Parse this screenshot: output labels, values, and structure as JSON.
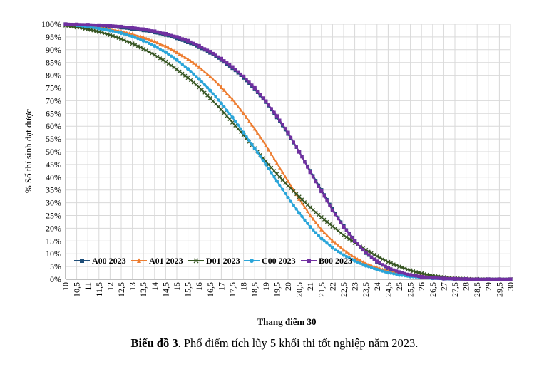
{
  "chart_data": {
    "type": "line",
    "xlabel": "Thang điểm 30",
    "ylabel": "% Số thí sinh đạt được",
    "xlim": [
      10,
      30
    ],
    "ylim": [
      0,
      100
    ],
    "x_ticks": [
      "10",
      "10,5",
      "11",
      "11,5",
      "12",
      "12,5",
      "13",
      "13,5",
      "14",
      "14,5",
      "15",
      "15,5",
      "16",
      "16,5",
      "17",
      "17,5",
      "18",
      "18,5",
      "19",
      "19,5",
      "20",
      "20,5",
      "21",
      "21,5",
      "22",
      "22,5",
      "23",
      "23,5",
      "24",
      "24,5",
      "25",
      "25,5",
      "26",
      "26,5",
      "27",
      "27,5",
      "28",
      "28,5",
      "29",
      "29,5",
      "30"
    ],
    "y_ticks": [
      "0%",
      "5%",
      "10%",
      "15%",
      "20%",
      "25%",
      "30%",
      "35%",
      "40%",
      "45%",
      "50%",
      "55%",
      "60%",
      "65%",
      "70%",
      "75%",
      "80%",
      "85%",
      "90%",
      "95%",
      "100%"
    ],
    "legend_position": "bottom-left (inside)",
    "grid": true,
    "x": [
      10,
      10.5,
      11,
      11.5,
      12,
      12.5,
      13,
      13.5,
      14,
      14.5,
      15,
      15.5,
      16,
      16.5,
      17,
      17.5,
      18,
      18.5,
      19,
      19.5,
      20,
      20.5,
      21,
      21.5,
      22,
      22.5,
      23,
      23.5,
      24,
      24.5,
      25,
      25.5,
      26,
      26.5,
      27,
      27.5,
      28,
      28.5,
      29,
      29.5,
      30
    ],
    "series": [
      {
        "name": "A00 2023",
        "color": "#1f4e79",
        "marker": "square",
        "values": [
          100,
          99.8,
          99.6,
          99.4,
          99.1,
          98.7,
          98.2,
          97.6,
          96.8,
          95.8,
          94.5,
          92.9,
          91,
          88.8,
          86,
          82.8,
          79,
          74.5,
          69.5,
          63.5,
          57,
          50,
          42.5,
          35,
          27.5,
          20.8,
          15,
          10.3,
          6.8,
          4.3,
          2.6,
          1.6,
          0.9,
          0.5,
          0.3,
          0.2,
          0.1,
          0,
          0,
          0,
          0
        ]
      },
      {
        "name": "A01 2023",
        "color": "#ed7d31",
        "marker": "triangle",
        "values": [
          100,
          99.6,
          99.2,
          98.7,
          98,
          97.2,
          96.1,
          94.8,
          93.2,
          91.3,
          89,
          86.3,
          83.2,
          79.5,
          75.3,
          70.5,
          65,
          59,
          52.5,
          45.5,
          38.5,
          31.5,
          25,
          19.5,
          15,
          11.5,
          8.5,
          6.2,
          4.5,
          3.2,
          2.3,
          1.6,
          1.1,
          0.7,
          0.4,
          0.2,
          0.1,
          0,
          0,
          0,
          0
        ]
      },
      {
        "name": "D01 2023",
        "color": "#375623",
        "marker": "x",
        "values": [
          99.5,
          98.8,
          98,
          97,
          95.8,
          94.2,
          92.4,
          90.3,
          88,
          85.3,
          82.3,
          79,
          75.3,
          71,
          66.5,
          61.5,
          56.5,
          51.3,
          46.2,
          41.3,
          36.7,
          32.3,
          28.2,
          24.3,
          20.7,
          17.3,
          14.3,
          11.5,
          9,
          6.8,
          5,
          3.5,
          2.3,
          1.4,
          0.8,
          0.4,
          0.2,
          0.1,
          0,
          0,
          0
        ]
      },
      {
        "name": "C00 2023",
        "color": "#2aa5d9",
        "marker": "circle",
        "values": [
          100,
          99.6,
          99,
          98.3,
          97.5,
          96.5,
          95.2,
          93.5,
          91.5,
          89,
          86,
          82.5,
          78.5,
          74,
          69,
          63.5,
          57.5,
          51.3,
          45,
          38.5,
          32,
          26,
          20.5,
          16,
          12.3,
          9.5,
          7.2,
          5.3,
          3.8,
          2.6,
          1.7,
          1.1,
          0.7,
          0.4,
          0.2,
          0.1,
          0,
          0,
          0,
          0,
          0
        ]
      },
      {
        "name": "B00 2023",
        "color": "#7030a0",
        "marker": "square",
        "values": [
          100,
          99.9,
          99.8,
          99.6,
          99.4,
          99,
          98.6,
          98,
          97.2,
          96.2,
          95,
          93.5,
          91.5,
          89.2,
          86.5,
          83.2,
          79.5,
          75,
          69.8,
          64,
          57.5,
          50,
          42,
          34.5,
          27,
          20.5,
          15,
          10.5,
          7,
          4.5,
          2.8,
          1.7,
          1,
          0.6,
          0.3,
          0.2,
          0.1,
          0,
          0,
          0,
          0
        ]
      }
    ]
  },
  "caption": {
    "label": "Biểu đồ 3",
    "text": ". Phổ điểm tích lũy 5 khối thi tốt nghiệp năm 2023."
  }
}
